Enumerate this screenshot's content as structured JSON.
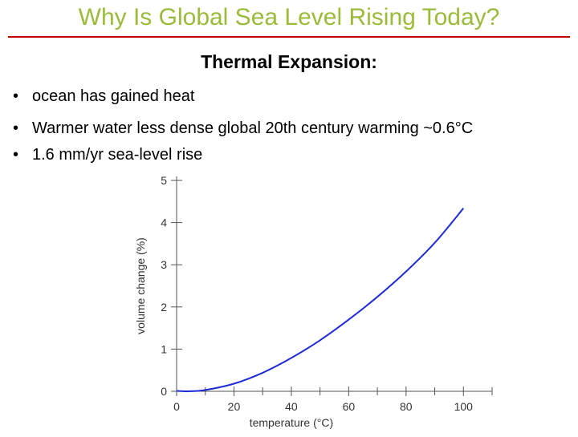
{
  "slide": {
    "title": "Why Is Global Sea Level Rising Today?",
    "subtitle": "Thermal Expansion:",
    "bullets": [
      "ocean has gained heat",
      "Warmer water less dense global 20th century warming ~0.6°C",
      "1.6 mm/yr sea-level rise"
    ],
    "bullet_glyph": "•"
  },
  "colors": {
    "title": "#9bbb3b",
    "rule": "#c00000",
    "curve": "#1f2bd6",
    "axis": "#555555"
  },
  "chart_data": {
    "type": "line",
    "title": "",
    "xlabel": "temperature (°C)",
    "ylabel": "volume change (%)",
    "xlim": [
      0,
      110
    ],
    "ylim": [
      0,
      5
    ],
    "xticks": [
      0,
      20,
      40,
      60,
      80,
      100
    ],
    "yticks": [
      0,
      1,
      2,
      3,
      4,
      5
    ],
    "series": [
      {
        "name": "volume change",
        "x": [
          0,
          4,
          10,
          20,
          30,
          40,
          50,
          60,
          70,
          80,
          90,
          100
        ],
        "y": [
          0.01,
          0.0,
          0.03,
          0.18,
          0.44,
          0.79,
          1.21,
          1.7,
          2.24,
          2.84,
          3.52,
          4.34
        ]
      }
    ]
  }
}
